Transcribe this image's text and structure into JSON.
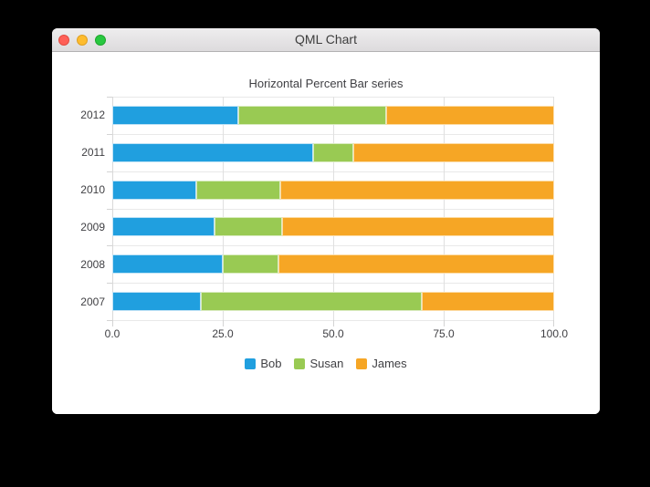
{
  "window": {
    "title": "QML Chart",
    "traffic_lights": {
      "close_color": "#ff5f57",
      "minimize_color": "#febc2e",
      "zoom_color": "#28c840"
    }
  },
  "chart_data": {
    "type": "bar",
    "orientation": "horizontal",
    "stacking": "percent",
    "title": "Horizontal Percent Bar series",
    "categories": [
      "2007",
      "2008",
      "2009",
      "2010",
      "2011",
      "2012"
    ],
    "categories_display_top_to_bottom": [
      "2012",
      "2011",
      "2010",
      "2009",
      "2008",
      "2007"
    ],
    "series": [
      {
        "name": "Bob",
        "color": "#209fdf",
        "border_color": "#bfe2f5",
        "values": [
          2,
          2,
          3,
          4,
          5,
          6
        ]
      },
      {
        "name": "Susan",
        "color": "#99ca53",
        "border_color": "#d9ebbf",
        "values": [
          5,
          1,
          2,
          4,
          1,
          7
        ]
      },
      {
        "name": "James",
        "color": "#f6a625",
        "border_color": "#fcdca6",
        "values": [
          3,
          5,
          8,
          13,
          5,
          8
        ]
      }
    ],
    "percent_by_category": {
      "2007": [
        20.0,
        50.0,
        30.0
      ],
      "2008": [
        25.0,
        12.5,
        62.5
      ],
      "2009": [
        23.08,
        15.38,
        61.54
      ],
      "2010": [
        19.05,
        19.05,
        61.9
      ],
      "2011": [
        45.45,
        9.09,
        45.45
      ],
      "2012": [
        28.57,
        33.33,
        38.1
      ]
    },
    "x_tick_labels": [
      "0.0",
      "25.0",
      "50.0",
      "75.0",
      "100.0"
    ],
    "xlim": [
      0,
      100
    ],
    "grid": true,
    "legend_position": "bottom",
    "label_color": "#404044",
    "grid_color": "#e2e2e2"
  }
}
